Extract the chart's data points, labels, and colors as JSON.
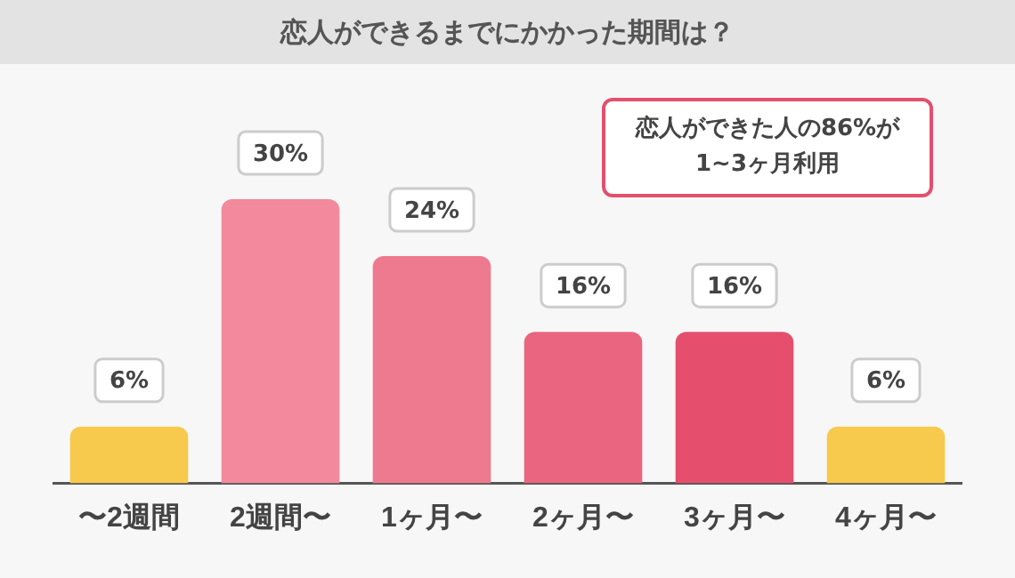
{
  "chart_data": {
    "type": "bar",
    "title": "恋人ができるまでにかかった期間は？",
    "categories": [
      "〜2週間",
      "2週間〜",
      "1ヶ月〜",
      "2ヶ月〜",
      "3ヶ月〜",
      "4ヶ月〜"
    ],
    "values": [
      6,
      30,
      24,
      16,
      16,
      6
    ],
    "colors": [
      "#f7c94c",
      "#f2899c",
      "#ee7a8f",
      "#ea6580",
      "#e54f6d",
      "#f7c94c"
    ],
    "value_labels": [
      "6%",
      "30%",
      "24%",
      "16%",
      "16%",
      "6%"
    ],
    "annotations": [
      "恋人ができた人の86%が1~3ヶ月利用"
    ],
    "grid": false,
    "legend": false
  }
}
